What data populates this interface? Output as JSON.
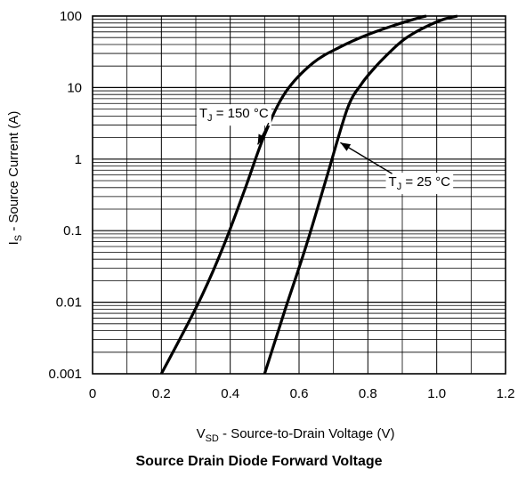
{
  "chart_data": {
    "type": "line",
    "title": "Source Drain Diode Forward Voltage",
    "xlabel": {
      "main": "V",
      "sub": "SD",
      "rest": " - Source-to-Drain Voltage (V)"
    },
    "ylabel": {
      "main": "I",
      "sub": "S",
      "rest": " - Source Current (A)"
    },
    "xlim": [
      0,
      1.2
    ],
    "ylim": [
      0.001,
      100
    ],
    "yscale": "log",
    "grid": true,
    "xticks": [
      "0",
      "0.2",
      "0.4",
      "0.6",
      "0.8",
      "1.0",
      "1.2"
    ],
    "yticks": [
      "0.001",
      "0.01",
      "0.1",
      "1",
      "10",
      "100"
    ],
    "series": [
      {
        "label": {
          "prefix": "T",
          "sub": "J",
          "rest": " = 150 °C"
        },
        "x": [
          0.2,
          0.26,
          0.32,
          0.38,
          0.44,
          0.5,
          0.56,
          0.64,
          0.72,
          0.8,
          0.88,
          0.95,
          0.97
        ],
        "y": [
          0.001,
          0.0035,
          0.013,
          0.06,
          0.35,
          2.2,
          8.5,
          22,
          37,
          55,
          75,
          95,
          100
        ]
      },
      {
        "label": {
          "prefix": "T",
          "sub": "J",
          "rest": " = 25 °C"
        },
        "x": [
          0.5,
          0.56,
          0.62,
          0.68,
          0.74,
          0.78,
          0.82,
          0.86,
          0.9,
          0.94,
          0.98,
          1.02,
          1.06
        ],
        "y": [
          0.001,
          0.008,
          0.06,
          0.55,
          5.0,
          11,
          19,
          30,
          45,
          60,
          75,
          90,
          100
        ]
      }
    ],
    "annotations": [
      {
        "series": 0,
        "text_x": 0.31,
        "text_y": 3.8,
        "arrow_to_x": 0.48,
        "arrow_to_y": 1.6
      },
      {
        "series": 1,
        "text_x": 0.86,
        "text_y": 0.42,
        "arrow_to_x": 0.72,
        "arrow_to_y": 1.7
      }
    ]
  }
}
